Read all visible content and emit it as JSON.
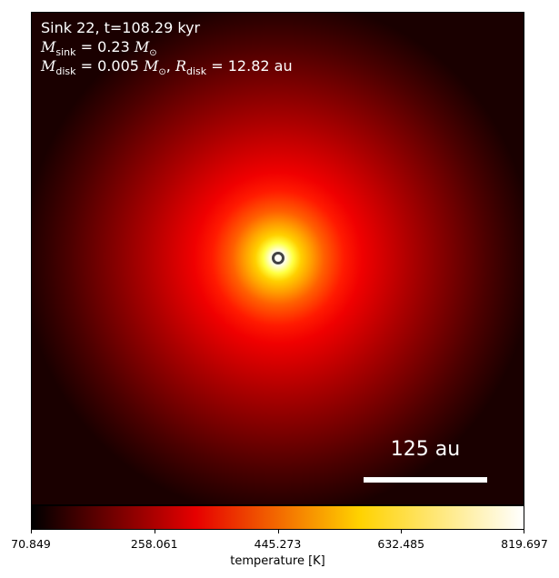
{
  "annotation": {
    "title": "Sink 22, t=108.29 kyr",
    "m_sink_symbol": "M",
    "m_sink_subscript": "sink",
    "m_sink_value": "= 0.23",
    "m_sink_unit": "M",
    "m_disk_symbol": "M",
    "m_disk_subscript": "disk",
    "m_disk_value": "= 0.005",
    "m_disk_unit": "M",
    "r_disk_symbol": "R",
    "r_disk_subscript": "disk",
    "r_disk_value": "= 12.82 au",
    "solar_symbol": "⊙"
  },
  "scalebar": {
    "label": "125 au"
  },
  "colorbar": {
    "label": "temperature [K]",
    "colormap": "hot",
    "range": [
      70.849,
      819.697
    ],
    "ticks": [
      "70.849",
      "258.061",
      "445.273",
      "632.485",
      "819.697"
    ],
    "colors": [
      "#000000",
      "#e60000",
      "#ffd200",
      "#ffffff"
    ]
  },
  "marker": {
    "icon": "sink-circle-icon",
    "color": "#444444"
  }
}
